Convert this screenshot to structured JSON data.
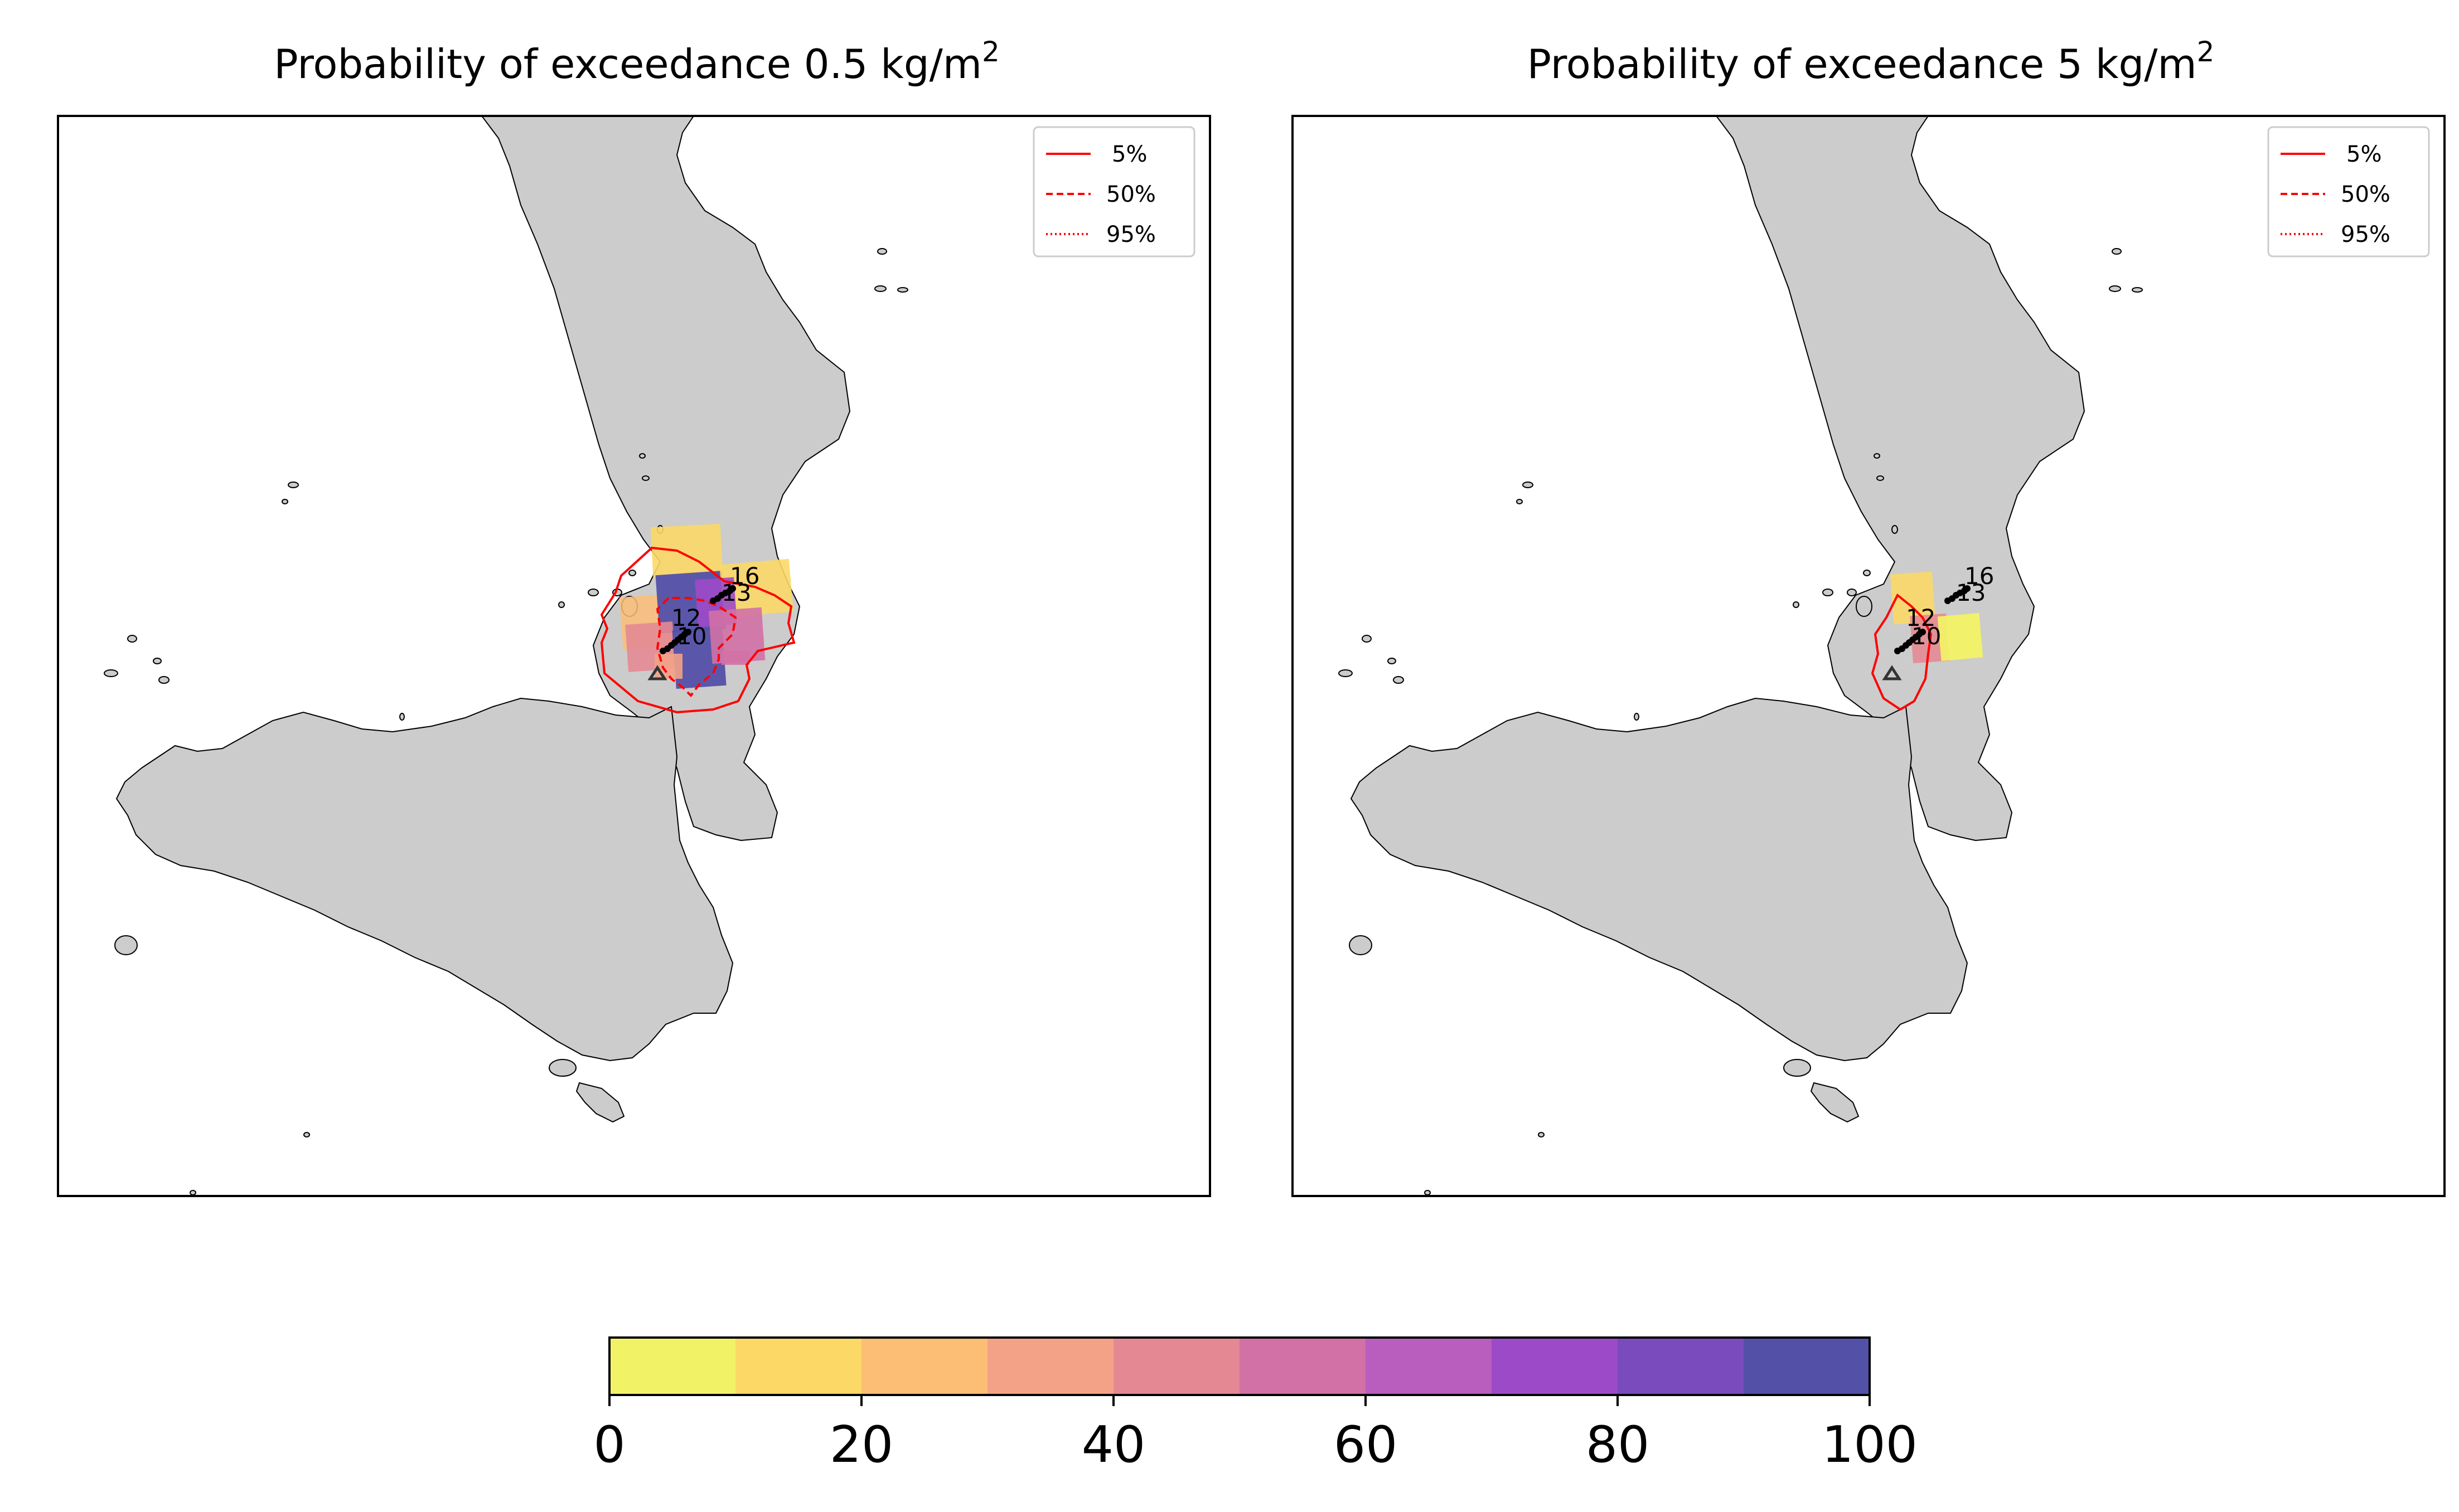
{
  "panels": [
    {
      "title_prefix": "Probability of exceedance 0.5 kg/m",
      "title_sup": "2",
      "legend": [
        {
          "label": "5%",
          "style": "solid"
        },
        {
          "label": "50%",
          "style": "dashed"
        },
        {
          "label": "95%",
          "style": "dotted"
        }
      ],
      "site_labels": [
        "16",
        "13",
        "12",
        "10"
      ]
    },
    {
      "title_prefix": "Probability of exceedance 5 kg/m",
      "title_sup": "2",
      "legend": [
        {
          "label": "5%",
          "style": "solid"
        },
        {
          "label": "50%",
          "style": "dashed"
        },
        {
          "label": "95%",
          "style": "dotted"
        }
      ],
      "site_labels": [
        "16",
        "13",
        "12",
        "10"
      ]
    }
  ],
  "colorbar": {
    "ticks": [
      "0",
      "20",
      "40",
      "60",
      "80",
      "100"
    ],
    "colors": [
      "#f2f266",
      "#fcd867",
      "#fcbd75",
      "#f3a287",
      "#e48994",
      "#d171a5",
      "#b95dbe",
      "#9d4ac8",
      "#7a4bbc",
      "#5350a8"
    ]
  },
  "colors": {
    "land": "#cccccc",
    "contour": "#ff0000",
    "frame": "#000000"
  }
}
